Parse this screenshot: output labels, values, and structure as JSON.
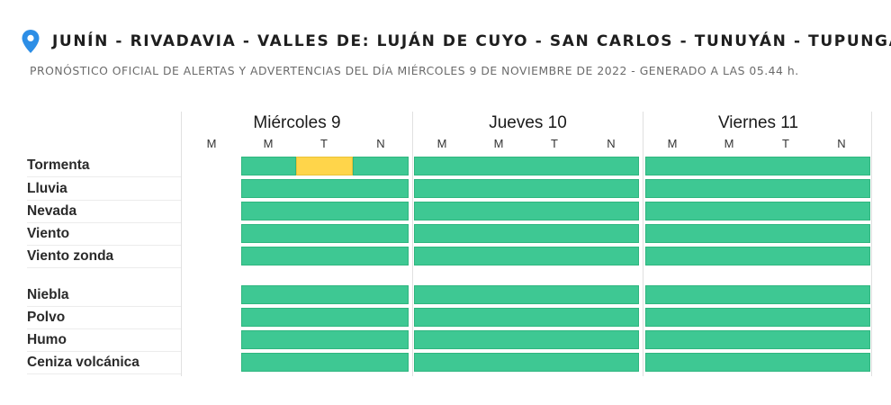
{
  "header": {
    "location_icon": "map-pin-icon",
    "title": "JUNÍN - RIVADAVIA - VALLES DE: LUJÁN DE CUYO - SAN CARLOS - TUNUYÁN - TUPUNGATO",
    "subtitle": "PRONÓSTICO OFICIAL DE ALERTAS Y ADVERTENCIAS DEL DÍA MIÉRCOLES 9 DE NOVIEMBRE DE 2022 - GENERADO A LAS 05.44 h."
  },
  "colors": {
    "green": "#3ec893",
    "yellow": "#ffd54a",
    "accent_pin": "#2d8ee6"
  },
  "days": [
    {
      "label": "Miércoles 9",
      "periods": [
        "M",
        "M",
        "T",
        "N"
      ]
    },
    {
      "label": "Jueves 10",
      "periods": [
        "M",
        "M",
        "T",
        "N"
      ]
    },
    {
      "label": "Viernes 11",
      "periods": [
        "M",
        "M",
        "T",
        "N"
      ]
    }
  ],
  "phenomena": [
    {
      "label": "Tormenta",
      "levels": [
        [
          "",
          "green",
          "yellow",
          "green"
        ],
        [
          "green",
          "green",
          "green",
          "green"
        ],
        [
          "green",
          "green",
          "green",
          "green"
        ]
      ]
    },
    {
      "label": "Lluvia",
      "levels": [
        [
          "",
          "green",
          "green",
          "green"
        ],
        [
          "green",
          "green",
          "green",
          "green"
        ],
        [
          "green",
          "green",
          "green",
          "green"
        ]
      ]
    },
    {
      "label": "Nevada",
      "levels": [
        [
          "",
          "green",
          "green",
          "green"
        ],
        [
          "green",
          "green",
          "green",
          "green"
        ],
        [
          "green",
          "green",
          "green",
          "green"
        ]
      ]
    },
    {
      "label": "Viento",
      "levels": [
        [
          "",
          "green",
          "green",
          "green"
        ],
        [
          "green",
          "green",
          "green",
          "green"
        ],
        [
          "green",
          "green",
          "green",
          "green"
        ]
      ]
    },
    {
      "label": "Viento zonda",
      "levels": [
        [
          "",
          "green",
          "green",
          "green"
        ],
        [
          "green",
          "green",
          "green",
          "green"
        ],
        [
          "green",
          "green",
          "green",
          "green"
        ]
      ]
    },
    {
      "label": "Niebla",
      "levels": [
        [
          "",
          "green",
          "green",
          "green"
        ],
        [
          "green",
          "green",
          "green",
          "green"
        ],
        [
          "green",
          "green",
          "green",
          "green"
        ]
      ]
    },
    {
      "label": "Polvo",
      "levels": [
        [
          "",
          "green",
          "green",
          "green"
        ],
        [
          "green",
          "green",
          "green",
          "green"
        ],
        [
          "green",
          "green",
          "green",
          "green"
        ]
      ]
    },
    {
      "label": "Humo",
      "levels": [
        [
          "",
          "green",
          "green",
          "green"
        ],
        [
          "green",
          "green",
          "green",
          "green"
        ],
        [
          "green",
          "green",
          "green",
          "green"
        ]
      ]
    },
    {
      "label": "Ceniza volcánica",
      "levels": [
        [
          "",
          "green",
          "green",
          "green"
        ],
        [
          "green",
          "green",
          "green",
          "green"
        ],
        [
          "green",
          "green",
          "green",
          "green"
        ]
      ]
    }
  ]
}
